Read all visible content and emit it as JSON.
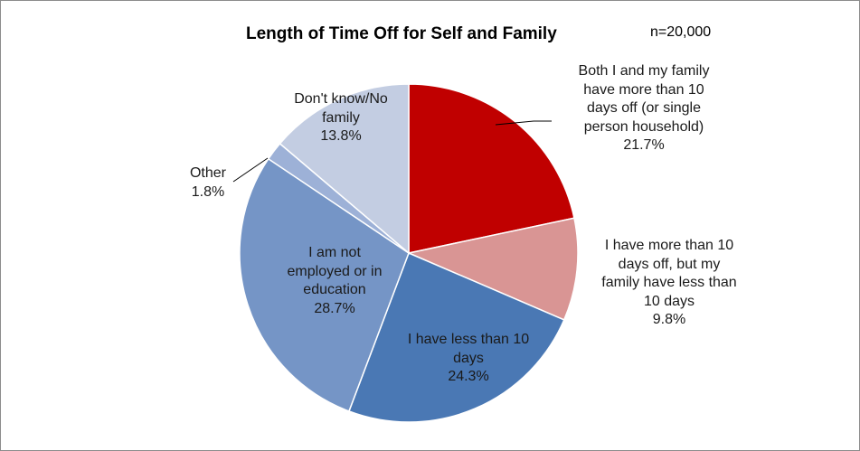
{
  "chart_data": {
    "type": "pie",
    "title": "Length of Time Off for Self and Family",
    "note": "n=20,000",
    "slices": [
      {
        "label_lines": [
          "Both I and my family",
          "have more than 10",
          "days off (or single",
          "person household)"
        ],
        "value_label": "21.7%",
        "value": 21.7,
        "color": "#c00000"
      },
      {
        "label_lines": [
          "I have more than 10",
          "days off, but my",
          "family have less than",
          "10 days"
        ],
        "value_label": "9.8%",
        "value": 9.8,
        "color": "#d99594"
      },
      {
        "label_lines": [
          "I have less than 10",
          "days"
        ],
        "value_label": "24.3%",
        "value": 24.3,
        "color": "#4a78b4"
      },
      {
        "label_lines": [
          "I am not",
          "employed or in",
          "education"
        ],
        "value_label": "28.7%",
        "value": 28.7,
        "color": "#7595c6"
      },
      {
        "label_lines": [
          "Other"
        ],
        "value_label": "1.8%",
        "value": 1.8,
        "color": "#9db1d7"
      },
      {
        "label_lines": [
          "Don't know/No",
          "family"
        ],
        "value_label": "13.8%",
        "value": 13.8,
        "color": "#c3cde2"
      }
    ]
  }
}
